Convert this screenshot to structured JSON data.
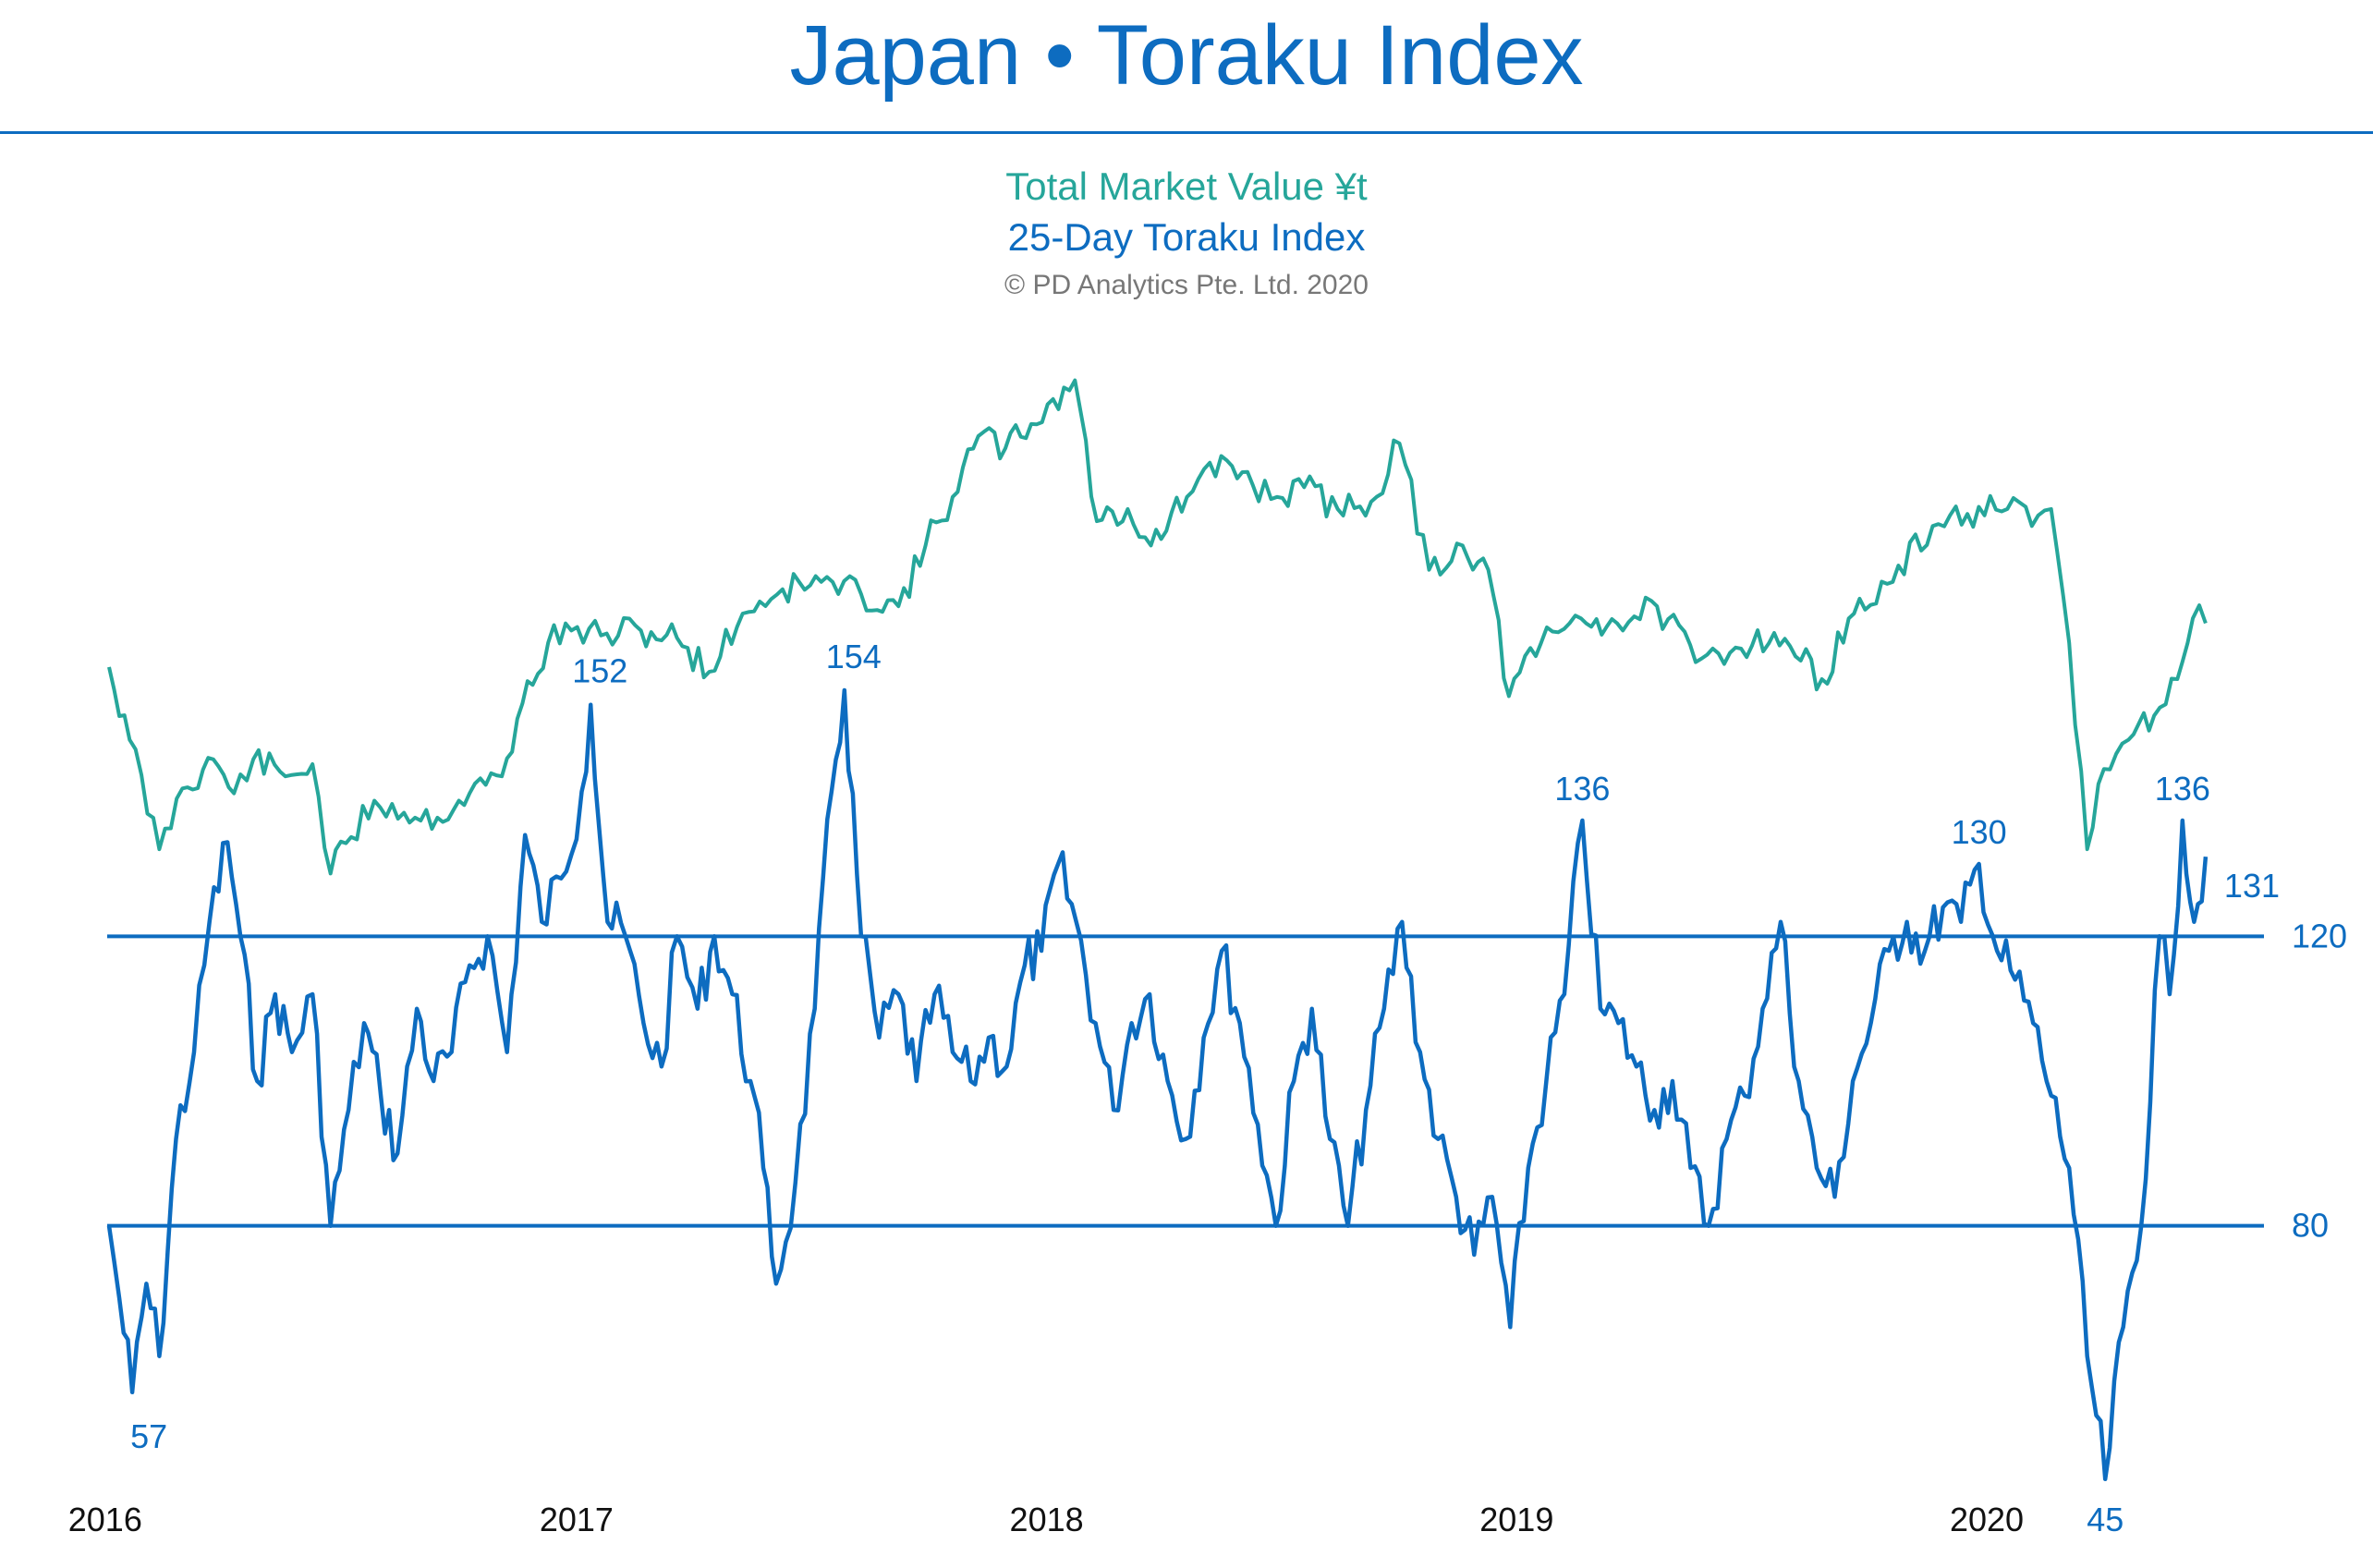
{
  "title": "Japan • Toraku Index",
  "legend": {
    "market_value": "Total Market Value ¥t",
    "toraku": "25-Day Toraku Index",
    "copyright": "© PD Analytics Pte. Ltd. 2020"
  },
  "colors": {
    "title": "#0d6cc0",
    "market_value": "#26a69a",
    "toraku": "#0d6cc0",
    "reference_lines": "#0d6cc0"
  },
  "chart_data": {
    "type": "line",
    "x_axis": {
      "tick_labels": [
        "2016",
        "2017",
        "2018",
        "2019",
        "2020"
      ],
      "range": [
        "2016-01-01",
        "2020-06-20"
      ]
    },
    "reference_lines": [
      {
        "value": 120,
        "label": "120"
      },
      {
        "value": 80,
        "label": "80"
      }
    ],
    "series": [
      {
        "name": "25-Day Toraku Index",
        "axis": "toraku",
        "ylim": [
          40,
          160
        ],
        "points": [
          [
            "2016-01-04",
            80
          ],
          [
            "2016-01-12",
            70
          ],
          [
            "2016-01-22",
            57
          ],
          [
            "2016-02-02",
            72
          ],
          [
            "2016-02-12",
            62
          ],
          [
            "2016-02-25",
            92
          ],
          [
            "2016-03-10",
            104
          ],
          [
            "2016-03-22",
            122
          ],
          [
            "2016-04-05",
            133
          ],
          [
            "2016-04-15",
            120
          ],
          [
            "2016-04-28",
            100
          ],
          [
            "2016-05-12",
            112
          ],
          [
            "2016-05-25",
            104
          ],
          [
            "2016-06-10",
            112
          ],
          [
            "2016-06-24",
            80
          ],
          [
            "2016-07-08",
            96
          ],
          [
            "2016-07-20",
            108
          ],
          [
            "2016-08-02",
            98
          ],
          [
            "2016-08-15",
            90
          ],
          [
            "2016-08-30",
            110
          ],
          [
            "2016-09-12",
            100
          ],
          [
            "2016-09-26",
            104
          ],
          [
            "2016-10-10",
            116
          ],
          [
            "2016-10-24",
            120
          ],
          [
            "2016-11-08",
            104
          ],
          [
            "2016-11-22",
            134
          ],
          [
            "2016-12-05",
            122
          ],
          [
            "2016-12-20",
            128
          ],
          [
            "2017-01-05",
            140
          ],
          [
            "2017-01-12",
            152
          ],
          [
            "2017-01-25",
            122
          ],
          [
            "2017-02-08",
            120
          ],
          [
            "2017-02-22",
            108
          ],
          [
            "2017-03-08",
            102
          ],
          [
            "2017-03-20",
            120
          ],
          [
            "2017-04-05",
            110
          ],
          [
            "2017-04-18",
            120
          ],
          [
            "2017-05-02",
            112
          ],
          [
            "2017-05-16",
            100
          ],
          [
            "2017-05-26",
            88
          ],
          [
            "2017-06-05",
            72
          ],
          [
            "2017-06-20",
            86
          ],
          [
            "2017-07-05",
            110
          ],
          [
            "2017-07-18",
            140
          ],
          [
            "2017-07-28",
            154
          ],
          [
            "2017-08-10",
            120
          ],
          [
            "2017-08-24",
            106
          ],
          [
            "2017-09-08",
            112
          ],
          [
            "2017-09-22",
            100
          ],
          [
            "2017-10-06",
            112
          ],
          [
            "2017-10-20",
            104
          ],
          [
            "2017-11-03",
            100
          ],
          [
            "2017-11-17",
            106
          ],
          [
            "2017-12-01",
            102
          ],
          [
            "2017-12-15",
            116
          ],
          [
            "2017-12-28",
            118
          ],
          [
            "2018-01-10",
            130
          ],
          [
            "2018-01-24",
            122
          ],
          [
            "2018-02-08",
            108
          ],
          [
            "2018-02-22",
            96
          ],
          [
            "2018-03-08",
            108
          ],
          [
            "2018-03-22",
            112
          ],
          [
            "2018-04-05",
            100
          ],
          [
            "2018-04-19",
            92
          ],
          [
            "2018-05-03",
            106
          ],
          [
            "2018-05-17",
            118
          ],
          [
            "2018-05-31",
            108
          ],
          [
            "2018-06-14",
            94
          ],
          [
            "2018-06-28",
            80
          ],
          [
            "2018-07-12",
            100
          ],
          [
            "2018-07-26",
            110
          ],
          [
            "2018-08-09",
            92
          ],
          [
            "2018-08-23",
            80
          ],
          [
            "2018-09-06",
            96
          ],
          [
            "2018-09-20",
            110
          ],
          [
            "2018-10-04",
            122
          ],
          [
            "2018-10-18",
            104
          ],
          [
            "2018-11-01",
            92
          ],
          [
            "2018-11-15",
            84
          ],
          [
            "2018-11-29",
            76
          ],
          [
            "2018-12-13",
            84
          ],
          [
            "2018-12-27",
            66
          ],
          [
            "2019-01-10",
            88
          ],
          [
            "2019-01-24",
            100
          ],
          [
            "2019-02-07",
            112
          ],
          [
            "2019-02-21",
            136
          ],
          [
            "2019-03-07",
            110
          ],
          [
            "2019-03-21",
            108
          ],
          [
            "2019-04-04",
            102
          ],
          [
            "2019-04-18",
            96
          ],
          [
            "2019-05-02",
            100
          ],
          [
            "2019-05-16",
            88
          ],
          [
            "2019-05-30",
            80
          ],
          [
            "2019-06-13",
            92
          ],
          [
            "2019-06-27",
            98
          ],
          [
            "2019-07-11",
            110
          ],
          [
            "2019-07-25",
            122
          ],
          [
            "2019-08-08",
            100
          ],
          [
            "2019-08-22",
            88
          ],
          [
            "2019-09-05",
            84
          ],
          [
            "2019-09-19",
            100
          ],
          [
            "2019-10-03",
            108
          ],
          [
            "2019-10-17",
            118
          ],
          [
            "2019-10-31",
            122
          ],
          [
            "2019-11-14",
            118
          ],
          [
            "2019-11-28",
            124
          ],
          [
            "2019-12-12",
            122
          ],
          [
            "2019-12-26",
            130
          ],
          [
            "2020-01-09",
            118
          ],
          [
            "2020-01-23",
            114
          ],
          [
            "2020-02-06",
            108
          ],
          [
            "2020-02-20",
            98
          ],
          [
            "2020-03-05",
            88
          ],
          [
            "2020-03-19",
            62
          ],
          [
            "2020-04-02",
            45
          ],
          [
            "2020-04-16",
            66
          ],
          [
            "2020-04-30",
            80
          ],
          [
            "2020-05-14",
            120
          ],
          [
            "2020-05-22",
            112
          ],
          [
            "2020-06-01",
            136
          ],
          [
            "2020-06-10",
            122
          ],
          [
            "2020-06-19",
            131
          ]
        ]
      },
      {
        "name": "Total Market Value ¥t",
        "axis": "market_value",
        "ylim": [
          450,
          720
        ],
        "points": [
          [
            "2016-01-04",
            590
          ],
          [
            "2016-01-20",
            560
          ],
          [
            "2016-02-12",
            515
          ],
          [
            "2016-03-01",
            540
          ],
          [
            "2016-03-25",
            552
          ],
          [
            "2016-04-10",
            538
          ],
          [
            "2016-04-25",
            552
          ],
          [
            "2016-05-20",
            545
          ],
          [
            "2016-06-10",
            550
          ],
          [
            "2016-06-24",
            505
          ],
          [
            "2016-07-10",
            520
          ],
          [
            "2016-07-28",
            535
          ],
          [
            "2016-08-20",
            530
          ],
          [
            "2016-09-15",
            528
          ],
          [
            "2016-10-10",
            538
          ],
          [
            "2016-11-04",
            545
          ],
          [
            "2016-11-20",
            575
          ],
          [
            "2016-12-10",
            600
          ],
          [
            "2016-12-28",
            605
          ],
          [
            "2017-01-20",
            603
          ],
          [
            "2017-02-20",
            605
          ],
          [
            "2017-03-20",
            602
          ],
          [
            "2017-04-14",
            588
          ],
          [
            "2017-05-10",
            612
          ],
          [
            "2017-06-10",
            622
          ],
          [
            "2017-07-10",
            625
          ],
          [
            "2017-08-10",
            620
          ],
          [
            "2017-09-08",
            615
          ],
          [
            "2017-09-29",
            640
          ],
          [
            "2017-10-20",
            660
          ],
          [
            "2017-11-09",
            685
          ],
          [
            "2017-11-30",
            680
          ],
          [
            "2017-12-20",
            690
          ],
          [
            "2018-01-23",
            708
          ],
          [
            "2018-02-09",
            650
          ],
          [
            "2018-03-05",
            655
          ],
          [
            "2018-03-23",
            640
          ],
          [
            "2018-04-20",
            660
          ],
          [
            "2018-05-21",
            675
          ],
          [
            "2018-06-10",
            665
          ],
          [
            "2018-06-29",
            660
          ],
          [
            "2018-07-20",
            664
          ],
          [
            "2018-08-15",
            655
          ],
          [
            "2018-09-10",
            658
          ],
          [
            "2018-10-02",
            682
          ],
          [
            "2018-10-25",
            630
          ],
          [
            "2018-11-20",
            640
          ],
          [
            "2018-12-10",
            630
          ],
          [
            "2018-12-26",
            578
          ],
          [
            "2019-01-20",
            600
          ],
          [
            "2019-02-20",
            610
          ],
          [
            "2019-03-20",
            608
          ],
          [
            "2019-04-20",
            615
          ],
          [
            "2019-05-20",
            592
          ],
          [
            "2019-06-20",
            598
          ],
          [
            "2019-07-20",
            604
          ],
          [
            "2019-08-26",
            585
          ],
          [
            "2019-09-20",
            612
          ],
          [
            "2019-10-20",
            625
          ],
          [
            "2019-11-20",
            648
          ],
          [
            "2019-12-17",
            653
          ],
          [
            "2020-01-17",
            655
          ],
          [
            "2020-02-05",
            648
          ],
          [
            "2020-02-20",
            655
          ],
          [
            "2020-03-05",
            600
          ],
          [
            "2020-03-19",
            515
          ],
          [
            "2020-04-01",
            548
          ],
          [
            "2020-04-20",
            560
          ],
          [
            "2020-05-10",
            570
          ],
          [
            "2020-05-28",
            585
          ],
          [
            "2020-06-09",
            610
          ],
          [
            "2020-06-19",
            608
          ]
        ]
      }
    ],
    "annotations": [
      {
        "label": "57",
        "series": "25-Day Toraku Index",
        "date": "2016-01-22",
        "value": 57
      },
      {
        "label": "152",
        "series": "25-Day Toraku Index",
        "date": "2017-01-12",
        "value": 152
      },
      {
        "label": "154",
        "series": "25-Day Toraku Index",
        "date": "2017-07-28",
        "value": 154
      },
      {
        "label": "136",
        "series": "25-Day Toraku Index",
        "date": "2019-02-21",
        "value": 136
      },
      {
        "label": "130",
        "series": "25-Day Toraku Index",
        "date": "2019-12-26",
        "value": 130
      },
      {
        "label": "45",
        "series": "25-Day Toraku Index",
        "date": "2020-04-02",
        "value": 45
      },
      {
        "label": "136",
        "series": "25-Day Toraku Index",
        "date": "2020-06-01",
        "value": 136
      },
      {
        "label": "131",
        "series": "25-Day Toraku Index",
        "date": "2020-06-19",
        "value": 131
      }
    ]
  }
}
